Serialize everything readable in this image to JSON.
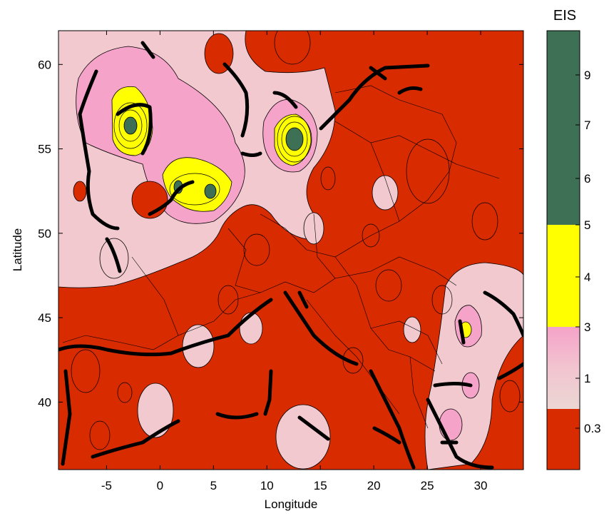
{
  "map": {
    "xlabel": "Longitude",
    "ylabel": "Latitude",
    "xlim": [
      -9.5,
      34
    ],
    "ylim": [
      36,
      62
    ],
    "xticks": [
      -5,
      0,
      5,
      10,
      15,
      20,
      25,
      30
    ],
    "yticks": [
      40,
      45,
      50,
      55,
      60
    ],
    "background_color": "#d92b00",
    "zones": [
      {
        "class": "pink",
        "color": "#f2c9cf"
      },
      {
        "class": "pink-high",
        "color": "#f5a3c8"
      },
      {
        "class": "yellow",
        "color": "#ffff00"
      },
      {
        "class": "green",
        "color": "#3d7055"
      }
    ]
  },
  "colorbar": {
    "title": "EIS",
    "segments": [
      {
        "color": "#d92b00",
        "range": [
          0,
          0.3
        ]
      },
      {
        "color": "#f2c9cf",
        "range": [
          0.3,
          3
        ]
      },
      {
        "color": "#f5a3c8",
        "range": [
          0.3,
          3
        ]
      },
      {
        "color": "#ffff00",
        "range": [
          3,
          5
        ]
      },
      {
        "color": "#3d7055",
        "range": [
          5,
          10
        ]
      }
    ],
    "tick_labels": [
      "9",
      "7",
      "6",
      "5",
      "4",
      "3",
      "1",
      "0.3"
    ]
  }
}
